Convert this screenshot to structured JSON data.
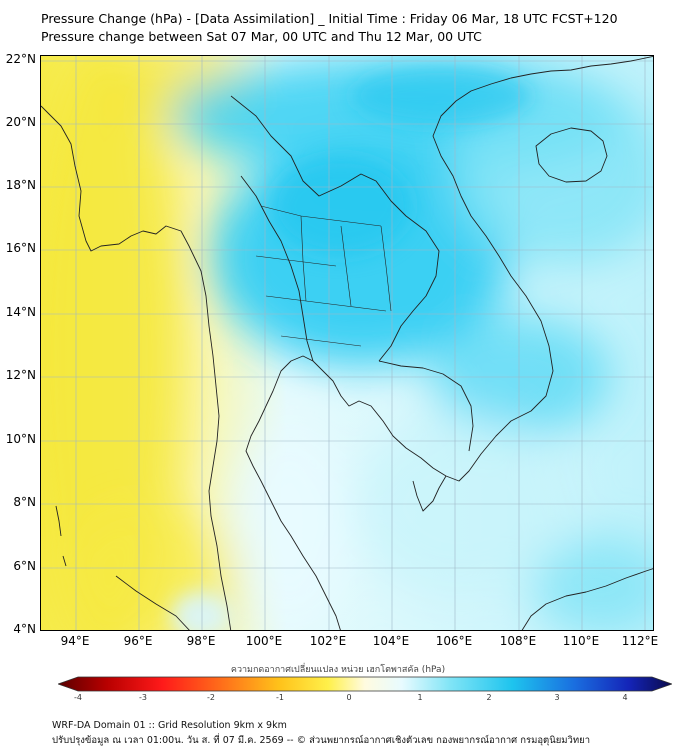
{
  "header": {
    "title_line1": "Pressure Change (hPa) - [Data Assimilation] _ Initial Time : Friday 06 Mar, 18 UTC FCST+120",
    "title_line2": "Pressure change between Sat 07 Mar, 00 UTC and Thu 12 Mar, 00 UTC"
  },
  "map": {
    "lat_labels": [
      "22°N",
      "20°N",
      "18°N",
      "16°N",
      "14°N",
      "12°N",
      "10°N",
      "8°N",
      "6°N",
      "4°N"
    ],
    "lon_labels": [
      "94°E",
      "96°E",
      "98°E",
      "100°E",
      "102°E",
      "104°E",
      "106°E",
      "108°E",
      "110°E",
      "112°E"
    ],
    "colors": {
      "warm": "#f7ec4a",
      "neutral": "#fbfadc",
      "light_blue": "#d5f7fb",
      "mid_blue": "#7fe4f6",
      "deep_blue": "#1ec4ee",
      "border": "#222222",
      "grid": "#9fb8c8"
    }
  },
  "colorbar": {
    "caption": "ความกดอากาศเปลี่ยนแปลง หน่วย เฮกโตพาสคัล (hPa)",
    "ticks": [
      "-4",
      "-3",
      "-2",
      "-1",
      "0",
      "1",
      "2",
      "3",
      "4"
    ],
    "range": [
      -4,
      4
    ],
    "colors": [
      "#5a0000",
      "#b80000",
      "#ff1a1a",
      "#ff7a1a",
      "#ffc21a",
      "#fff04a",
      "#fffbe0",
      "#e8fbff",
      "#7fe4f6",
      "#1ec4ee",
      "#1a6fe0",
      "#1424b8",
      "#0a0a4a"
    ]
  },
  "footer": {
    "line1": "WRF-DA Domain 01 :: Grid Resolution 9km x 9km",
    "line2": "ปรับปรุงข้อมูล ณ เวลา 01:00น. วัน ส. ที่ 07 มี.ค. 2569 -- © ส่วนพยากรณ์อากาศเชิงตัวเลข กองพยากรณ์อากาศ กรมอุตุนิยมวิทยา"
  }
}
